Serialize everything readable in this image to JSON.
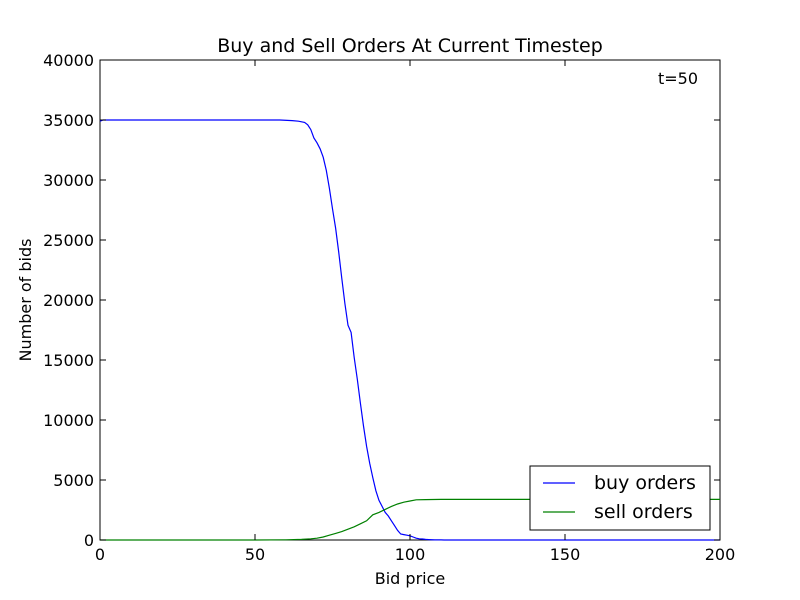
{
  "chart_data": {
    "type": "line",
    "title": "Buy and Sell Orders At Current Timestep",
    "xlabel": "Bid price",
    "ylabel": "Number of bids",
    "xlim": [
      0,
      200
    ],
    "ylim": [
      0,
      40000
    ],
    "x_ticks": [
      "0",
      "50",
      "100",
      "150",
      "200"
    ],
    "y_ticks": [
      "0",
      "5000",
      "10000",
      "15000",
      "20000",
      "25000",
      "30000",
      "35000",
      "40000"
    ],
    "annotation": "t=50",
    "legend_position": "lower-right",
    "grid": false,
    "series": [
      {
        "name": "buy orders",
        "color": "#0000ff",
        "x": [
          0,
          1,
          10,
          40,
          58,
          62,
          64,
          66,
          67,
          68,
          69,
          70,
          71,
          72,
          73,
          74,
          75,
          76,
          77,
          78,
          79,
          80,
          81,
          82,
          83,
          84,
          85,
          86,
          87,
          88,
          89,
          90,
          91,
          92,
          93,
          94,
          95,
          96,
          97,
          98,
          99,
          100,
          101,
          102,
          103,
          104,
          105,
          106,
          108,
          110,
          111,
          112,
          115,
          120,
          200
        ],
        "y": [
          34900,
          35000,
          35000,
          35000,
          35000,
          34950,
          34900,
          34800,
          34600,
          34200,
          33500,
          33100,
          32600,
          31900,
          30800,
          29300,
          27600,
          26000,
          24000,
          21800,
          19700,
          17900,
          17300,
          15200,
          13400,
          11400,
          9500,
          7800,
          6400,
          5200,
          4100,
          3300,
          2800,
          2300,
          2000,
          1600,
          1200,
          800,
          500,
          450,
          400,
          350,
          250,
          150,
          100,
          80,
          50,
          30,
          10,
          5,
          0,
          0,
          0,
          0,
          0
        ]
      },
      {
        "name": "sell orders",
        "color": "#008000",
        "x": [
          0,
          50,
          60,
          65,
          68,
          70,
          72,
          74,
          76,
          78,
          80,
          82,
          84,
          86,
          88,
          90,
          92,
          94,
          96,
          98,
          100,
          102,
          105,
          110,
          120,
          150,
          200
        ],
        "y": [
          0,
          0,
          20,
          50,
          100,
          150,
          250,
          400,
          550,
          700,
          900,
          1100,
          1350,
          1600,
          2100,
          2300,
          2550,
          2800,
          3000,
          3150,
          3250,
          3350,
          3370,
          3380,
          3380,
          3380,
          3380
        ]
      }
    ]
  }
}
